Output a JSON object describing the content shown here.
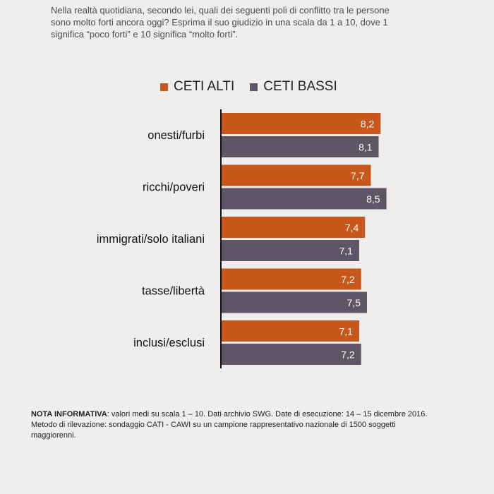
{
  "question": {
    "lines": [
      "Nella realtà quotidiana, secondo lei, quali dei seguenti poli di conflitto tra le persone",
      "sono molto forti ancora oggi? Esprima il suo giudizio in una scala da 1 a 10, dove 1",
      "significa “poco forti” e 10 significa “molto forti”."
    ]
  },
  "colors": {
    "ceti_alti": "#c8571b",
    "ceti_bassi": "#5f5566",
    "axis": "#111111",
    "value_label": "#ffffff"
  },
  "chart_data": {
    "type": "bar",
    "orientation": "horizontal",
    "categories": [
      "onesti/furbi",
      "ricchi/poveri",
      "immigrati/solo italiani",
      "tasse/libertà",
      "inclusi/esclusi"
    ],
    "series": [
      {
        "name": "CETI ALTI",
        "values": [
          8.2,
          7.7,
          7.4,
          7.2,
          7.1
        ],
        "labels": [
          "8,2",
          "7,7",
          "7,4",
          "7,2",
          "7,1"
        ]
      },
      {
        "name": "CETI BASSI",
        "values": [
          8.1,
          8.5,
          7.1,
          7.5,
          7.2
        ],
        "labels": [
          "8,1",
          "8,5",
          "7,1",
          "7,5",
          "7,2"
        ]
      }
    ],
    "xlim": [
      0,
      10
    ],
    "grid": false,
    "legend": "top"
  },
  "note": {
    "bold": "NOTA INFORMATIVA",
    "lines": [
      ": valori medi su scala 1 – 10. Dati archivio SWG. Date di esecuzione: 14 – 15 dicembre 2016.",
      "Metodo di rilevazione: sondaggio CATI - CAWI su un campione rappresentativo nazionale di 1500 soggetti",
      "maggiorenni."
    ]
  }
}
